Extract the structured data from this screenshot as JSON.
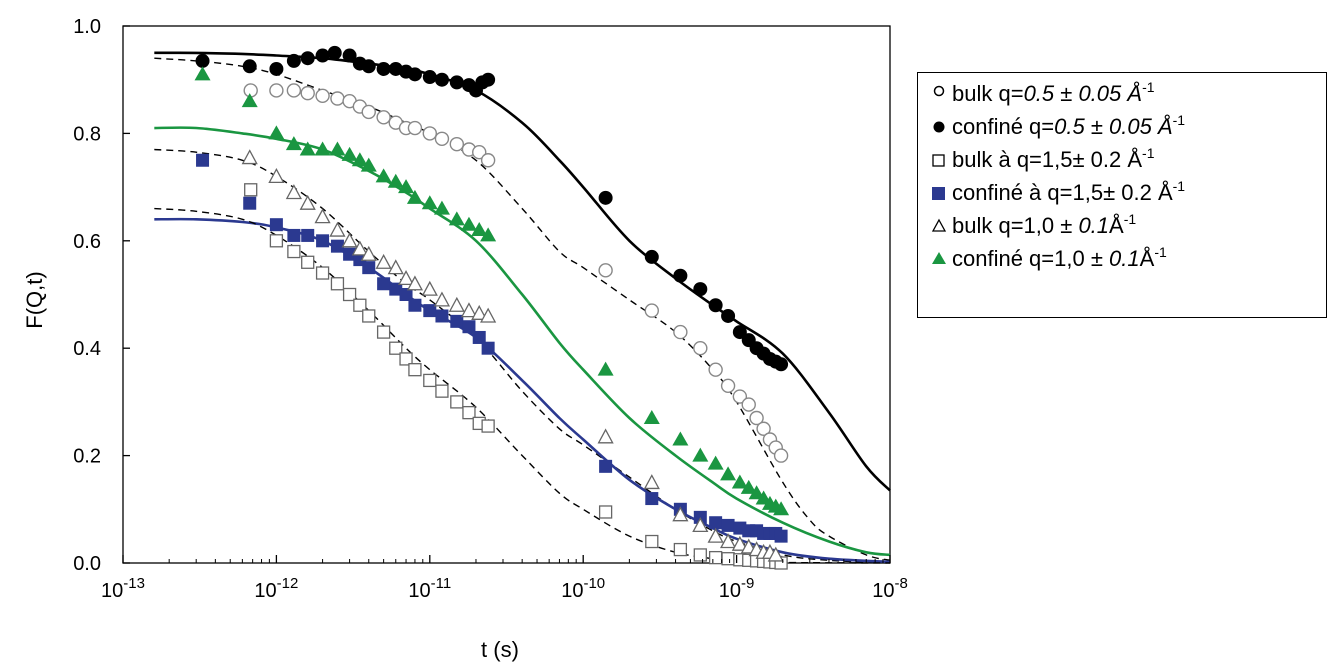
{
  "chart_data": {
    "type": "scatter",
    "xlabel": "t (s)",
    "ylabel": "F(Q,t)",
    "x_scale": "log",
    "xlim": [
      1e-13,
      1e-08
    ],
    "ylim": [
      0.0,
      1.0
    ],
    "x_ticks": [
      {
        "value": 1e-13,
        "label": "10-13"
      },
      {
        "value": 1e-12,
        "label": "10-12"
      },
      {
        "value": 1e-11,
        "label": "10-11"
      },
      {
        "value": 1e-10,
        "label": "10-10"
      },
      {
        "value": 1e-09,
        "label": "10-9"
      },
      {
        "value": 1e-08,
        "label": "10-8"
      }
    ],
    "y_ticks": [
      "0.0",
      "0.2",
      "0.4",
      "0.6",
      "0.8",
      "1.0"
    ],
    "legend_position": "right",
    "series": [
      {
        "name": "bulk q=0.5 ± 0.05 Å-1",
        "marker": "circle-open",
        "color": "#888888",
        "x": [
          6.8e-13,
          1e-12,
          1.3e-12,
          1.6e-12,
          2e-12,
          2.5e-12,
          3e-12,
          3.5e-12,
          4e-12,
          5e-12,
          6e-12,
          7e-12,
          8e-12,
          1e-11,
          1.2e-11,
          1.5e-11,
          1.8e-11,
          2.1e-11,
          2.4e-11,
          1.4e-10,
          2.8e-10,
          4.3e-10,
          5.8e-10,
          7.3e-10,
          8.8e-10,
          1.05e-09,
          1.2e-09,
          1.35e-09,
          1.5e-09,
          1.65e-09,
          1.8e-09,
          1.95e-09
        ],
        "y": [
          0.88,
          0.88,
          0.88,
          0.875,
          0.87,
          0.865,
          0.86,
          0.85,
          0.84,
          0.83,
          0.82,
          0.81,
          0.81,
          0.8,
          0.79,
          0.78,
          0.77,
          0.765,
          0.75,
          0.545,
          0.47,
          0.43,
          0.4,
          0.36,
          0.33,
          0.31,
          0.295,
          0.27,
          0.25,
          0.23,
          0.215,
          0.2
        ]
      },
      {
        "name": "confiné q=0.5 ± 0.05 Å-1",
        "marker": "circle-filled",
        "color": "#000000",
        "x": [
          3.3e-13,
          6.7e-13,
          1e-12,
          1.3e-12,
          1.6e-12,
          2e-12,
          2.4e-12,
          3e-12,
          3.5e-12,
          4e-12,
          5e-12,
          6e-12,
          7e-12,
          8e-12,
          1e-11,
          1.2e-11,
          1.5e-11,
          1.8e-11,
          2e-11,
          2.2e-11,
          2.4e-11,
          1.4e-10,
          2.8e-10,
          4.3e-10,
          5.8e-10,
          7.3e-10,
          8.8e-10,
          1.05e-09,
          1.2e-09,
          1.35e-09,
          1.5e-09,
          1.65e-09,
          1.8e-09,
          1.95e-09
        ],
        "y": [
          0.935,
          0.925,
          0.92,
          0.935,
          0.94,
          0.945,
          0.95,
          0.945,
          0.93,
          0.925,
          0.92,
          0.92,
          0.915,
          0.91,
          0.905,
          0.9,
          0.895,
          0.89,
          0.88,
          0.895,
          0.9,
          0.68,
          0.57,
          0.535,
          0.51,
          0.48,
          0.46,
          0.43,
          0.415,
          0.4,
          0.39,
          0.38,
          0.375,
          0.37
        ]
      },
      {
        "name": "bulk à q=1,5± 0.2 Å-1",
        "marker": "square-open",
        "color": "#666666",
        "x": [
          6.8e-13,
          1e-12,
          1.3e-12,
          1.6e-12,
          2e-12,
          2.5e-12,
          3e-12,
          3.5e-12,
          4e-12,
          5e-12,
          6e-12,
          7e-12,
          8e-12,
          1e-11,
          1.2e-11,
          1.5e-11,
          1.8e-11,
          2.1e-11,
          2.4e-11,
          1.4e-10,
          2.8e-10,
          4.3e-10,
          5.8e-10,
          7.3e-10,
          8.8e-10,
          1.05e-09,
          1.2e-09,
          1.35e-09,
          1.5e-09,
          1.65e-09,
          1.8e-09,
          1.95e-09
        ],
        "y": [
          0.695,
          0.6,
          0.58,
          0.56,
          0.54,
          0.52,
          0.5,
          0.48,
          0.46,
          0.43,
          0.4,
          0.38,
          0.36,
          0.34,
          0.32,
          0.3,
          0.28,
          0.26,
          0.255,
          0.095,
          0.04,
          0.025,
          0.015,
          0.01,
          0.008,
          0.006,
          0.005,
          0.004,
          0.003,
          0.002,
          0.001,
          0.0
        ]
      },
      {
        "name": "confiné à q=1,5± 0.2 Å-1",
        "marker": "square-filled",
        "color": "#2b3990",
        "x": [
          3.3e-13,
          6.7e-13,
          1e-12,
          1.3e-12,
          1.6e-12,
          2e-12,
          2.5e-12,
          3e-12,
          3.5e-12,
          4e-12,
          5e-12,
          6e-12,
          7e-12,
          8e-12,
          1e-11,
          1.2e-11,
          1.5e-11,
          1.8e-11,
          2.1e-11,
          2.4e-11,
          1.4e-10,
          2.8e-10,
          4.3e-10,
          5.8e-10,
          7.3e-10,
          8.8e-10,
          1.05e-09,
          1.2e-09,
          1.35e-09,
          1.5e-09,
          1.65e-09,
          1.8e-09,
          1.95e-09
        ],
        "y": [
          0.75,
          0.67,
          0.63,
          0.61,
          0.61,
          0.6,
          0.59,
          0.575,
          0.565,
          0.55,
          0.52,
          0.51,
          0.5,
          0.48,
          0.47,
          0.46,
          0.45,
          0.44,
          0.42,
          0.4,
          0.18,
          0.12,
          0.1,
          0.085,
          0.075,
          0.07,
          0.065,
          0.06,
          0.06,
          0.055,
          0.055,
          0.055,
          0.05
        ]
      },
      {
        "name": "bulk q=1,0 ± 0.1Å-1",
        "marker": "triangle-open",
        "color": "#666666",
        "x": [
          6.7e-13,
          1e-12,
          1.3e-12,
          1.6e-12,
          2e-12,
          2.5e-12,
          3e-12,
          3.5e-12,
          4e-12,
          5e-12,
          6e-12,
          7e-12,
          8e-12,
          1e-11,
          1.2e-11,
          1.5e-11,
          1.8e-11,
          2.1e-11,
          2.4e-11,
          1.4e-10,
          2.8e-10,
          4.3e-10,
          5.8e-10,
          7.3e-10,
          8.8e-10,
          1.05e-09,
          1.2e-09,
          1.35e-09,
          1.5e-09,
          1.65e-09,
          1.8e-09
        ],
        "y": [
          0.755,
          0.72,
          0.69,
          0.67,
          0.645,
          0.62,
          0.6,
          0.585,
          0.575,
          0.56,
          0.55,
          0.53,
          0.52,
          0.51,
          0.49,
          0.48,
          0.47,
          0.465,
          0.46,
          0.235,
          0.15,
          0.09,
          0.07,
          0.05,
          0.04,
          0.035,
          0.03,
          0.025,
          0.02,
          0.02,
          0.015
        ]
      },
      {
        "name": "confiné q=1,0 ± 0.1Å-1",
        "marker": "triangle-filled",
        "color": "#1a9641",
        "x": [
          3.3e-13,
          6.7e-13,
          1e-12,
          1.3e-12,
          1.6e-12,
          2e-12,
          2.5e-12,
          3e-12,
          3.5e-12,
          4e-12,
          5e-12,
          6e-12,
          7e-12,
          8e-12,
          1e-11,
          1.2e-11,
          1.5e-11,
          1.8e-11,
          2.1e-11,
          2.4e-11,
          1.4e-10,
          2.8e-10,
          4.3e-10,
          5.8e-10,
          7.3e-10,
          8.8e-10,
          1.05e-09,
          1.2e-09,
          1.35e-09,
          1.5e-09,
          1.65e-09,
          1.8e-09,
          1.95e-09
        ],
        "y": [
          0.91,
          0.86,
          0.8,
          0.78,
          0.77,
          0.77,
          0.77,
          0.76,
          0.75,
          0.74,
          0.72,
          0.71,
          0.7,
          0.68,
          0.67,
          0.66,
          0.64,
          0.63,
          0.62,
          0.61,
          0.36,
          0.27,
          0.23,
          0.2,
          0.185,
          0.165,
          0.15,
          0.14,
          0.13,
          0.12,
          0.11,
          0.105,
          0.1
        ]
      }
    ],
    "fit_curves": [
      {
        "color": "#000000",
        "dash": "solid",
        "x": [
          1.6e-13,
          3e-13,
          6e-13,
          1e-12,
          2e-12,
          4e-12,
          7e-12,
          1e-11,
          2e-11,
          4e-11,
          7e-11,
          1e-10,
          2e-10,
          4e-10,
          7e-10,
          1e-09,
          2e-09,
          4e-09,
          7e-09,
          1e-08
        ],
        "y": [
          0.95,
          0.95,
          0.948,
          0.945,
          0.94,
          0.93,
          0.92,
          0.91,
          0.88,
          0.82,
          0.75,
          0.7,
          0.6,
          0.53,
          0.48,
          0.45,
          0.39,
          0.28,
          0.18,
          0.135
        ]
      },
      {
        "color": "#000000",
        "dash": "dashed",
        "x": [
          1.6e-13,
          3e-13,
          6e-13,
          1e-12,
          2e-12,
          4e-12,
          7e-12,
          1e-11,
          2e-11,
          4e-11,
          7e-11,
          1e-10,
          2e-10,
          4e-10,
          7e-10,
          1e-09,
          2e-09,
          3e-09,
          4e-09,
          7e-09,
          1e-08
        ],
        "y": [
          0.94,
          0.935,
          0.925,
          0.91,
          0.88,
          0.85,
          0.82,
          0.8,
          0.75,
          0.66,
          0.58,
          0.55,
          0.49,
          0.43,
          0.36,
          0.3,
          0.15,
          0.08,
          0.05,
          0.015,
          0.005
        ]
      },
      {
        "color": "#1a9641",
        "dash": "solid",
        "x": [
          1.6e-13,
          3e-13,
          6e-13,
          1e-12,
          2e-12,
          4e-12,
          7e-12,
          1e-11,
          2e-11,
          4e-11,
          7e-11,
          1e-10,
          2e-10,
          4e-10,
          7e-10,
          1e-09,
          2e-09,
          4e-09,
          7e-09,
          1e-08
        ],
        "y": [
          0.81,
          0.81,
          0.8,
          0.79,
          0.77,
          0.73,
          0.69,
          0.66,
          0.6,
          0.5,
          0.41,
          0.36,
          0.27,
          0.2,
          0.15,
          0.12,
          0.075,
          0.04,
          0.02,
          0.015
        ]
      },
      {
        "color": "#000000",
        "dash": "dashed",
        "x": [
          1.6e-13,
          3e-13,
          6e-13,
          1e-12,
          2e-12,
          4e-12,
          7e-12,
          1e-11,
          2e-11,
          4e-11,
          7e-11,
          1e-10,
          2e-10,
          4e-10,
          7e-10,
          1e-09,
          2e-09,
          4e-09,
          1e-08
        ],
        "y": [
          0.77,
          0.765,
          0.75,
          0.72,
          0.66,
          0.58,
          0.52,
          0.49,
          0.42,
          0.32,
          0.25,
          0.22,
          0.16,
          0.1,
          0.06,
          0.04,
          0.015,
          0.005,
          0.0
        ]
      },
      {
        "color": "#2b3990",
        "dash": "solid",
        "x": [
          1.6e-13,
          3e-13,
          6e-13,
          1e-12,
          2e-12,
          4e-12,
          7e-12,
          1e-11,
          2e-11,
          4e-11,
          7e-11,
          1e-10,
          2e-10,
          4e-10,
          7e-10,
          1e-09,
          2e-09,
          4e-09,
          1e-08
        ],
        "y": [
          0.64,
          0.64,
          0.635,
          0.625,
          0.6,
          0.55,
          0.5,
          0.47,
          0.42,
          0.34,
          0.27,
          0.23,
          0.155,
          0.1,
          0.065,
          0.045,
          0.02,
          0.008,
          0.002
        ]
      },
      {
        "color": "#000000",
        "dash": "dashed",
        "x": [
          1.6e-13,
          3e-13,
          6e-13,
          1e-12,
          2e-12,
          4e-12,
          7e-12,
          1e-11,
          2e-11,
          4e-11,
          7e-11,
          1e-10,
          2e-10,
          4e-10,
          7e-10,
          1e-09,
          2e-09,
          1e-08
        ],
        "y": [
          0.66,
          0.655,
          0.64,
          0.61,
          0.55,
          0.47,
          0.4,
          0.36,
          0.29,
          0.2,
          0.13,
          0.1,
          0.05,
          0.02,
          0.008,
          0.004,
          0.001,
          0.0
        ]
      }
    ]
  }
}
